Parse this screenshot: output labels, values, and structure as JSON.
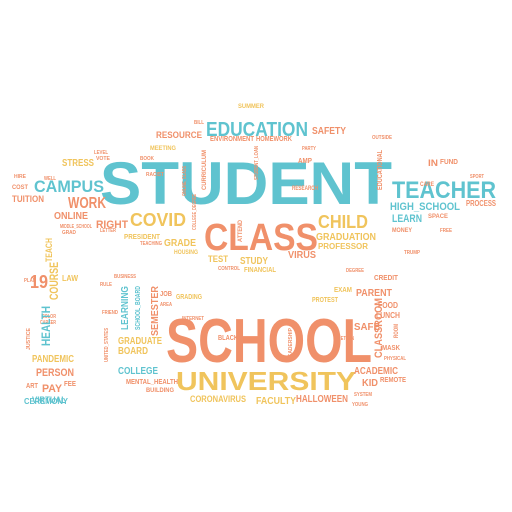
{
  "palette": {
    "background": "#ffffff",
    "teal": "#5fc3cf",
    "salmon": "#f0906a",
    "gold": "#f0c45c"
  },
  "words": {
    "student": "STUDENT",
    "school": "SCHOOL",
    "class": "CLASS",
    "university": "UNIVERSITY",
    "education": "EDUCATION",
    "teacher": "TEACHER",
    "campus": "CAMPUS",
    "work": "WORK",
    "covid": "COVID",
    "child": "CHILD",
    "online": "ONLINE",
    "right": "RIGHT",
    "high_school": "HIGH_SCHOOL",
    "learn": "LEARN",
    "graduation": "GRADUATION",
    "professor": "PROFESSOR",
    "grade": "GRADE",
    "president": "PRESIDENT",
    "virus": "VIRUS",
    "test": "TEST",
    "study": "STUDY",
    "financial": "FINANCIAL",
    "resource": "RESOURCE",
    "environment": "ENVIRONMENT",
    "homework": "HOMEWORK",
    "safety": "SAFETY",
    "stress": "STRESS",
    "tuition": "TUITION",
    "cost": "COST",
    "meeting": "MEETING",
    "parent": "PARENT",
    "food": "FOOD",
    "lunch": "LUNCH",
    "classroom": "CLASSROOM",
    "safe": "SAFE",
    "mask": "MASK",
    "academic": "ACADEMIC",
    "kid": "KID",
    "remote": "REMOTE",
    "graduate": "GRADUATE",
    "college": "COLLEGE",
    "board": "BOARD",
    "semester": "SEMESTER",
    "learning": "LEARNING",
    "mental_health": "MENTAL_HEALTH",
    "building": "BUILDING",
    "coronavirus": "CORONAVIRUS",
    "faculty": "FACULTY",
    "halloween": "HALLOWEEN",
    "black": "BLACK",
    "pandemic": "PANDEMIC",
    "person": "PERSON",
    "pay": "PAY",
    "virtual": "VIRTUAL",
    "ceremony": "CEREMONY",
    "course": "COURSE",
    "teach": "TEACH",
    "health": "HEALTH",
    "law": "LAW",
    "nineteen": "19",
    "in": "IN",
    "fund": "FUND",
    "process": "PROCESS",
    "money": "MONEY",
    "space": "SPACE",
    "credit": "CREDIT",
    "exam": "EXAM",
    "protest": "PROTEST",
    "job": "JOB",
    "grading": "GRADING",
    "housing": "HOUSING",
    "curriculum": "CURRICULUM",
    "summer": "SUMMER",
    "amp": "AMP",
    "research": "RESEARCH",
    "educational": "EDUCATIONAL",
    "middle_school": "MIDDLE_SCHOOL",
    "care": "CARE",
    "attend": "ATTEND",
    "leadership": "LEADERSHIP",
    "school_board": "SCHOOL_BOARD",
    "grad": "GRAD",
    "vote": "VOTE",
    "racist": "RACIST",
    "teaching": "TEACHING",
    "control": "CONTROL",
    "bill": "BILL",
    "hire": "HIRE",
    "art": "ART",
    "fee": "FEE",
    "well": "WELL",
    "plan": "PLAN",
    "sport": "SPORT",
    "color": "COLOR",
    "career": "CAREER",
    "letter": "LETTER",
    "level": "LEVEL",
    "outside": "OUTSIDE",
    "online_class": "ONLINE_CLASS",
    "college_degree": "COLLEGE_DEGREE",
    "free": "FREE",
    "rule": "RULE",
    "room": "ROOM",
    "degree": "DEGREE",
    "book": "BOOK",
    "party": "PARTY",
    "area": "AREA",
    "business": "BUSINESS",
    "trump": "TRUMP",
    "internet": "INTERNET",
    "physical": "PHYSICAL",
    "friend": "FRIEND",
    "return": "RETURN",
    "student_loan": "STUDENT_LOAN",
    "system": "SYSTEM",
    "justice": "JUSTICE",
    "young": "YOUNG",
    "united_states": "UNITED_STATES"
  }
}
